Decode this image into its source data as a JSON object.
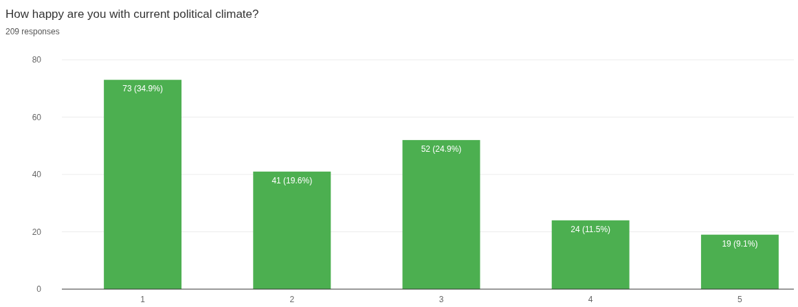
{
  "chart_data": {
    "type": "bar",
    "title": "How happy are you with current political climate?",
    "subtitle": "209 responses",
    "categories": [
      "1",
      "2",
      "3",
      "4",
      "5"
    ],
    "values": [
      73,
      41,
      52,
      24,
      19
    ],
    "value_labels": [
      "73 (34.9%)",
      "41 (19.6%)",
      "52 (24.9%)",
      "24 (11.5%)",
      "19 (9.1%)"
    ],
    "color": "#4caf50",
    "ylim": [
      0,
      80
    ],
    "yticks": [
      0,
      20,
      40,
      60,
      80
    ],
    "grid": "y"
  }
}
